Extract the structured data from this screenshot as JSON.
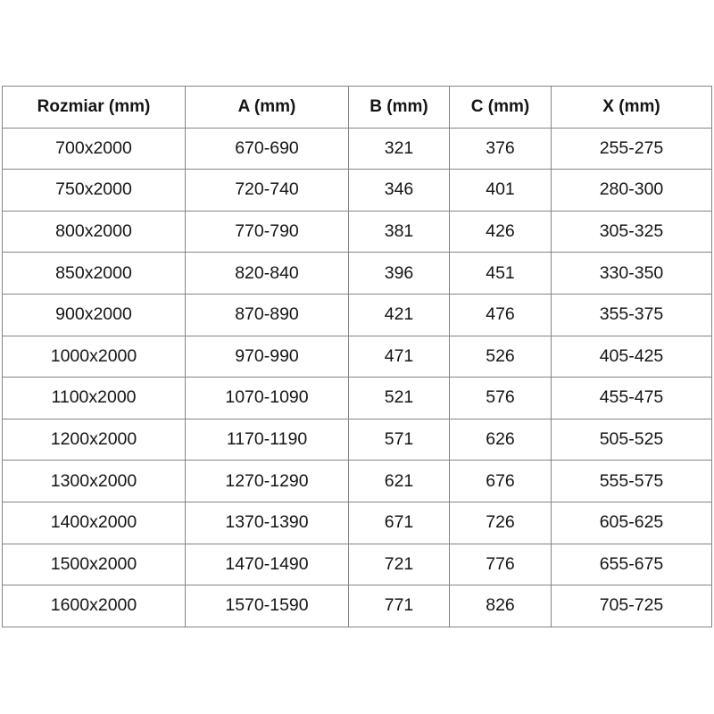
{
  "chart_data": {
    "type": "table",
    "columns": [
      "Rozmiar (mm)",
      "A (mm)",
      "B (mm)",
      "C (mm)",
      "X (mm)"
    ],
    "rows": [
      [
        "700x2000",
        "670-690",
        "321",
        "376",
        "255-275"
      ],
      [
        "750x2000",
        "720-740",
        "346",
        "401",
        "280-300"
      ],
      [
        "800x2000",
        "770-790",
        "381",
        "426",
        "305-325"
      ],
      [
        "850x2000",
        "820-840",
        "396",
        "451",
        "330-350"
      ],
      [
        "900x2000",
        "870-890",
        "421",
        "476",
        "355-375"
      ],
      [
        "1000x2000",
        "970-990",
        "471",
        "526",
        "405-425"
      ],
      [
        "1100x2000",
        "1070-1090",
        "521",
        "576",
        "455-475"
      ],
      [
        "1200x2000",
        "1170-1190",
        "571",
        "626",
        "505-525"
      ],
      [
        "1300x2000",
        "1270-1290",
        "621",
        "676",
        "555-575"
      ],
      [
        "1400x2000",
        "1370-1390",
        "671",
        "726",
        "605-625"
      ],
      [
        "1500x2000",
        "1470-1490",
        "721",
        "776",
        "655-675"
      ],
      [
        "1600x2000",
        "1570-1590",
        "771",
        "826",
        "705-725"
      ]
    ]
  },
  "colors": {
    "grid_border": "#858585",
    "text": "#151515",
    "background": "#ffffff"
  }
}
